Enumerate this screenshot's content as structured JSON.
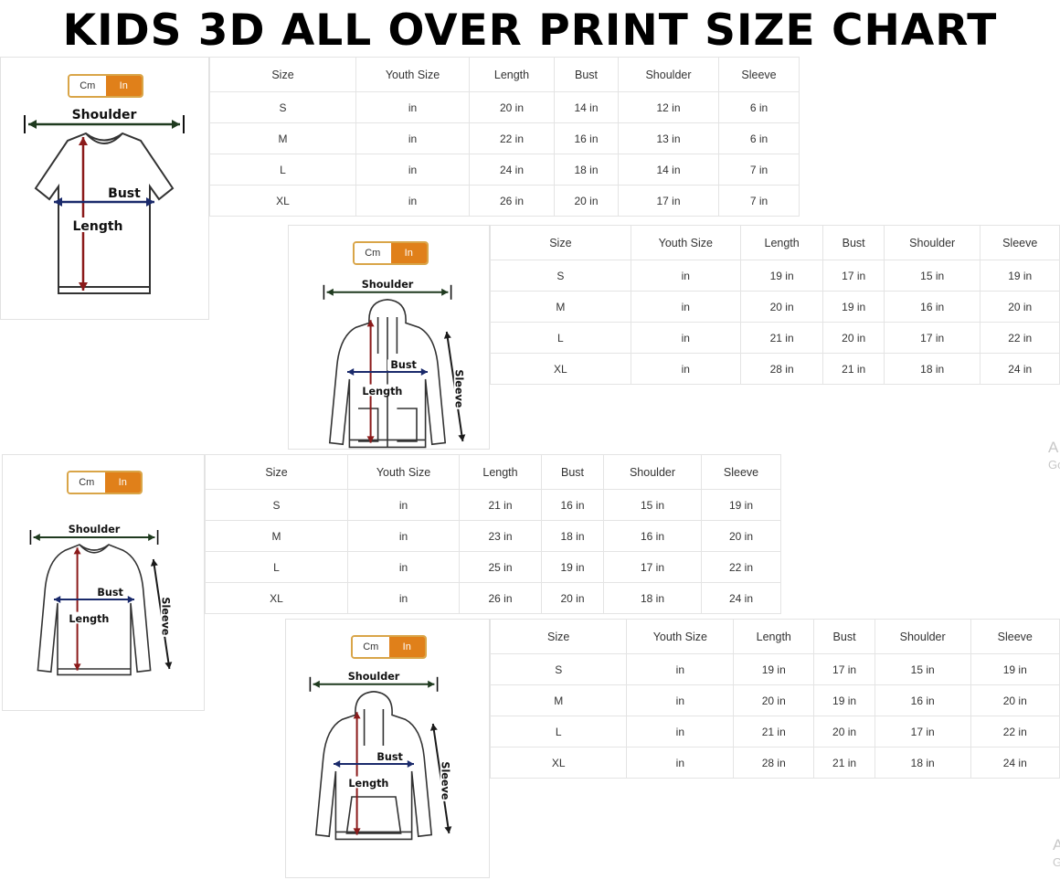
{
  "title": "KIDS 3D ALL OVER PRINT SIZE CHART",
  "colors": {
    "toggle_active": "#e0801a",
    "toggle_border": "#d9a548",
    "length_arrow": "#8b1a1a",
    "bust_arrow": "#1a2a6b",
    "shoulder_arrow": "#1f3a1f"
  },
  "unit_toggle": {
    "cm": "Cm",
    "in": "In",
    "selected": "In"
  },
  "headers": [
    "Size",
    "Youth Size",
    "Length",
    "Bust",
    "Shoulder",
    "Sleeve"
  ],
  "labels": {
    "shoulder": "Shoulder",
    "bust": "Bust",
    "length": "Length",
    "sleeve": "Sleeve"
  },
  "charts": [
    {
      "garment": "t-shirt",
      "rows": [
        [
          "S",
          "in",
          "20 in",
          "14 in",
          "12 in",
          "6 in"
        ],
        [
          "M",
          "in",
          "22 in",
          "16 in",
          "13 in",
          "6 in"
        ],
        [
          "L",
          "in",
          "24 in",
          "18 in",
          "14 in",
          "7 in"
        ],
        [
          "XL",
          "in",
          "26 in",
          "20 in",
          "17 in",
          "7 in"
        ]
      ]
    },
    {
      "garment": "zip-hoodie",
      "rows": [
        [
          "S",
          "in",
          "19 in",
          "17 in",
          "15 in",
          "19 in"
        ],
        [
          "M",
          "in",
          "20 in",
          "19 in",
          "16 in",
          "20 in"
        ],
        [
          "L",
          "in",
          "21 in",
          "20 in",
          "17 in",
          "22 in"
        ],
        [
          "XL",
          "in",
          "28 in",
          "21 in",
          "18 in",
          "24 in"
        ]
      ]
    },
    {
      "garment": "long-sleeve",
      "rows": [
        [
          "S",
          "in",
          "21 in",
          "16 in",
          "15 in",
          "19 in"
        ],
        [
          "M",
          "in",
          "23 in",
          "18 in",
          "16 in",
          "20 in"
        ],
        [
          "L",
          "in",
          "25 in",
          "19 in",
          "17 in",
          "22 in"
        ],
        [
          "XL",
          "in",
          "26 in",
          "20 in",
          "18 in",
          "24 in"
        ]
      ]
    },
    {
      "garment": "hoodie",
      "rows": [
        [
          "S",
          "in",
          "19 in",
          "17 in",
          "15 in",
          "19 in"
        ],
        [
          "M",
          "in",
          "20 in",
          "19 in",
          "16 in",
          "20 in"
        ],
        [
          "L",
          "in",
          "21 in",
          "20 in",
          "17 in",
          "22 in"
        ],
        [
          "XL",
          "in",
          "28 in",
          "21 in",
          "18 in",
          "24 in"
        ]
      ]
    }
  ],
  "ghost_text": [
    [
      "A",
      "Go"
    ],
    [
      "A",
      "G"
    ]
  ]
}
